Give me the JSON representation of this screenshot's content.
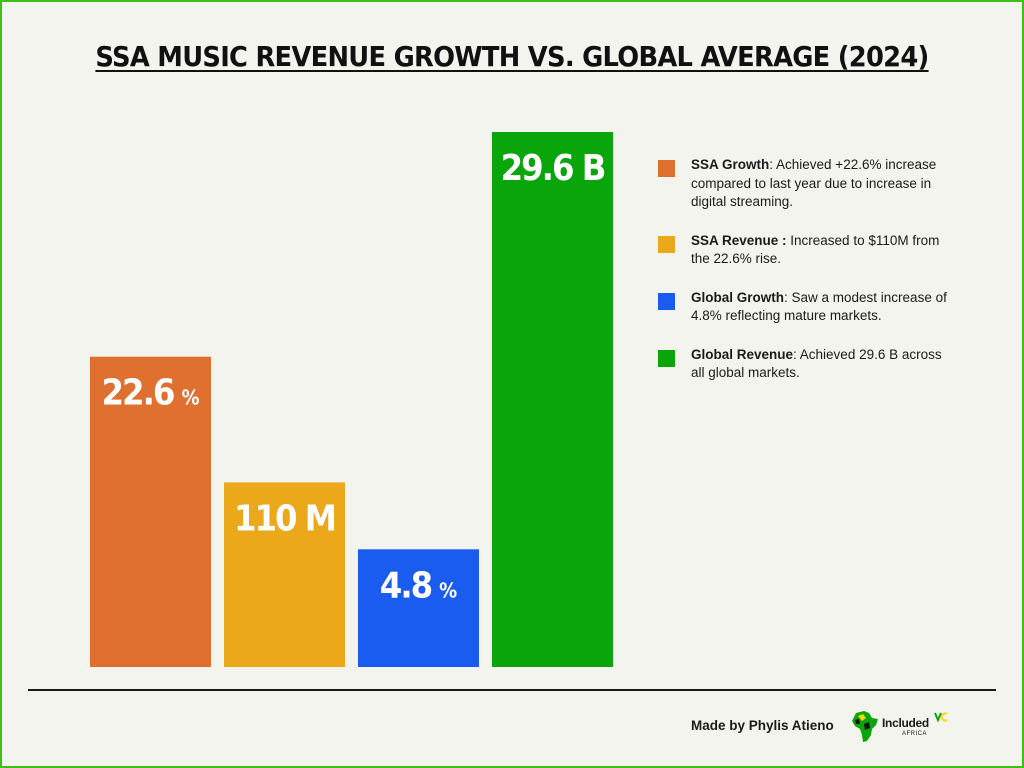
{
  "title": "SSA MUSIC REVENUE GROWTH VS. GLOBAL AVERAGE (2024)",
  "chart_data": {
    "type": "bar",
    "title": "SSA MUSIC REVENUE GROWTH VS. GLOBAL AVERAGE (2024)",
    "categories": [
      "SSA Growth",
      "SSA Revenue",
      "Global Growth",
      "Global Revenue"
    ],
    "values": [
      22.6,
      110,
      4.8,
      29.6
    ],
    "value_labels": [
      {
        "main": "22.6",
        "unit": "%"
      },
      {
        "main": "110 M",
        "unit": ""
      },
      {
        "main": "4.8",
        "unit": "%"
      },
      {
        "main": "29.6 B",
        "unit": ""
      }
    ],
    "colors": [
      "#e07030",
      "#eaa81a",
      "#1a5cf0",
      "#0aa50a"
    ],
    "relative_heights": [
      0.58,
      0.345,
      0.22,
      1.0
    ],
    "grid": false,
    "legend_placement": "right"
  },
  "legend": [
    {
      "bold": "SSA Growth",
      "text": ": Achieved +22.6% increase compared to last year due to increase in digital streaming.",
      "color": "#e07030"
    },
    {
      "bold": "SSA Revenue :",
      "text": " Increased to $110M from the 22.6% rise.",
      "color": "#eaa81a"
    },
    {
      "bold": "Global Growth",
      "text": ": Saw a modest increase of 4.8% reflecting mature markets.",
      "color": "#1a5cf0"
    },
    {
      "bold": "Global Revenue",
      "text": ": Achieved 29.6 B across all global markets.",
      "color": "#0aa50a"
    }
  ],
  "footer": {
    "credit": "Made by Phylis Atieno",
    "logo_text": "Included",
    "logo_sub": "AFRICA",
    "logo_vc": "VC"
  },
  "colors": {
    "frame": "#3fbf1a",
    "background": "#f4f4ef"
  }
}
